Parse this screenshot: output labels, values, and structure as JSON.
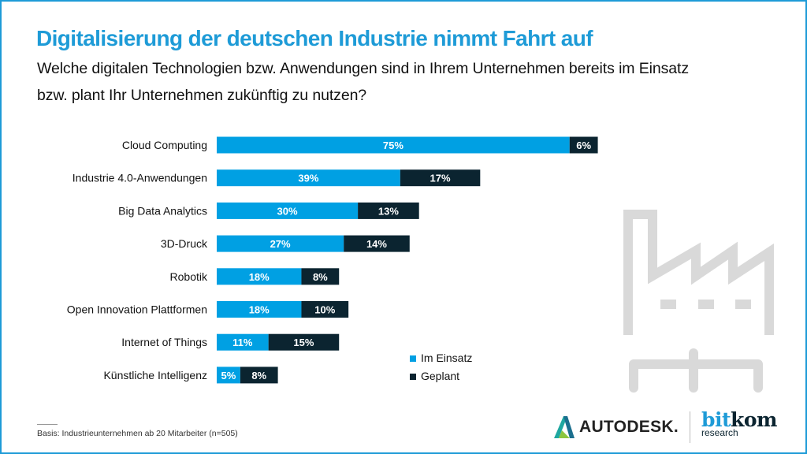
{
  "title": "Digitalisierung der deutschen Industrie nimmt Fahrt auf",
  "subtitle_line1": "Welche digitalen Technologien  bzw. Anwendungen sind in Ihrem Unternehmen bereits im Einsatz",
  "subtitle_line2": "bzw. plant Ihr Unternehmen zukünftig zu nutzen?",
  "footnote": "Basis: Industrieunternehmen ab 20 Mitarbeiter  (n=505)",
  "logos": {
    "autodesk": "AUTODESK.",
    "bitkom_a": "bit",
    "bitkom_b": "kom",
    "bitkom_sub": "research"
  },
  "colors": {
    "im_einsatz": "#00a0e3",
    "geplant": "#0b2430",
    "accent": "#1e9bd7",
    "icon": "#d9d9d9"
  },
  "decorative_icon": "factory-icon",
  "chart_data": {
    "type": "bar",
    "orientation": "horizontal",
    "stacked": true,
    "categories": [
      "Cloud Computing",
      "Industrie 4.0-Anwendungen",
      "Big Data Analytics",
      "3D-Druck",
      "Robotik",
      "Open Innovation Plattformen",
      "Internet of Things",
      "Künstliche Intelligenz"
    ],
    "series": [
      {
        "name": "Im Einsatz",
        "color": "#00a0e3",
        "values": [
          75,
          39,
          30,
          27,
          18,
          18,
          11,
          5
        ]
      },
      {
        "name": "Geplant",
        "color": "#0b2430",
        "values": [
          6,
          17,
          13,
          14,
          8,
          10,
          15,
          8
        ]
      }
    ],
    "value_format": "%",
    "legend_position": "bottom-right",
    "grid": false
  }
}
